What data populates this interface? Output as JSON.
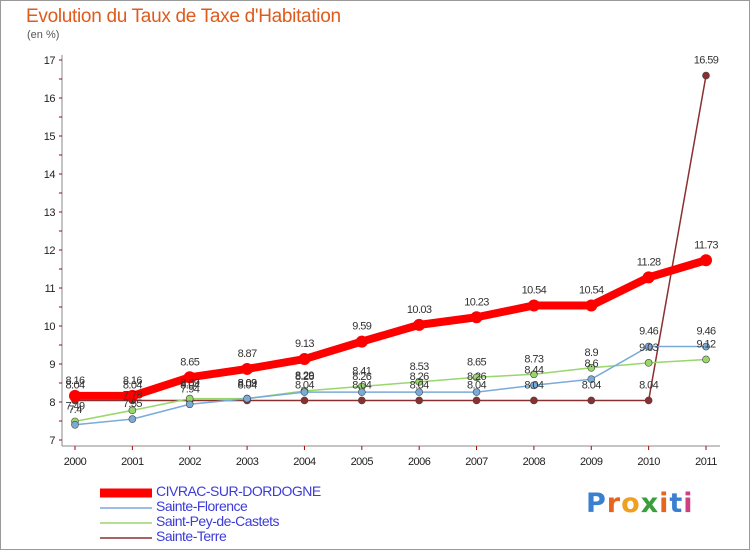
{
  "header": {
    "title": "Evolution du Taux de Taxe d'Habitation",
    "unit": "(en %)"
  },
  "logo": {
    "text": "Proxiti",
    "colors": [
      "#3a7fd0",
      "#e8641c",
      "#f0a020",
      "#3a9e3a",
      "#e8641c",
      "#3a7fd0",
      "#d04080"
    ]
  },
  "chart_data": {
    "type": "line",
    "x": [
      "2000",
      "2001",
      "2002",
      "2003",
      "2004",
      "2005",
      "2006",
      "2007",
      "2008",
      "2009",
      "2010",
      "2011"
    ],
    "ylim": [
      7,
      17
    ],
    "yticks": [
      "7",
      "8",
      "9",
      "10",
      "11",
      "12",
      "13",
      "14",
      "15",
      "16",
      "17"
    ],
    "grid": false,
    "legend_position": "bottom-left",
    "series": [
      {
        "name": "CIVRAC-SUR-DORDOGNE",
        "color": "#ff0000",
        "values": [
          8.16,
          8.16,
          8.65,
          8.87,
          9.13,
          9.59,
          10.03,
          10.23,
          10.54,
          10.54,
          11.28,
          11.73
        ],
        "labels": [
          "8.16",
          "8.16",
          "8.65",
          "8.87",
          "9.13",
          "9.59",
          "10.03",
          "10.23",
          "10.54",
          "10.54",
          "11.28",
          "11.73"
        ]
      },
      {
        "name": "Sainte-Florence",
        "color": "#7aaad8",
        "values": [
          7.4,
          7.55,
          7.94,
          8.09,
          8.26,
          8.26,
          8.26,
          8.26,
          8.44,
          8.6,
          9.46,
          9.46
        ],
        "labels": [
          "7.4",
          "7.55",
          "7.94",
          "8.09",
          "8.26",
          "8.26",
          "8.26",
          "8.26",
          "8.44",
          "8.6",
          "9.46",
          "9.46"
        ]
      },
      {
        "name": "Saint-Pey-de-Castets",
        "color": "#99d66b",
        "values": [
          7.49,
          7.78,
          8.09,
          8.09,
          8.29,
          8.41,
          8.53,
          8.65,
          8.73,
          8.9,
          9.03,
          9.12
        ],
        "labels": [
          "7.49",
          "7.78",
          "8.09",
          "8.09",
          "8.29",
          "8.41",
          "8.53",
          "8.65",
          "8.73",
          "8.9",
          "9.03",
          "9.12"
        ]
      },
      {
        "name": "Sainte-Terre",
        "color": "#8a3030",
        "values": [
          8.04,
          8.04,
          8.04,
          8.04,
          8.04,
          8.04,
          8.04,
          8.04,
          8.04,
          8.04,
          8.04,
          16.59
        ],
        "labels": [
          "8.04",
          "8.04",
          "8.04",
          "8.04",
          "8.04",
          "8.04",
          "8.04",
          "8.04",
          "8.04",
          "8.04",
          "8.04",
          "16.59"
        ]
      }
    ]
  }
}
